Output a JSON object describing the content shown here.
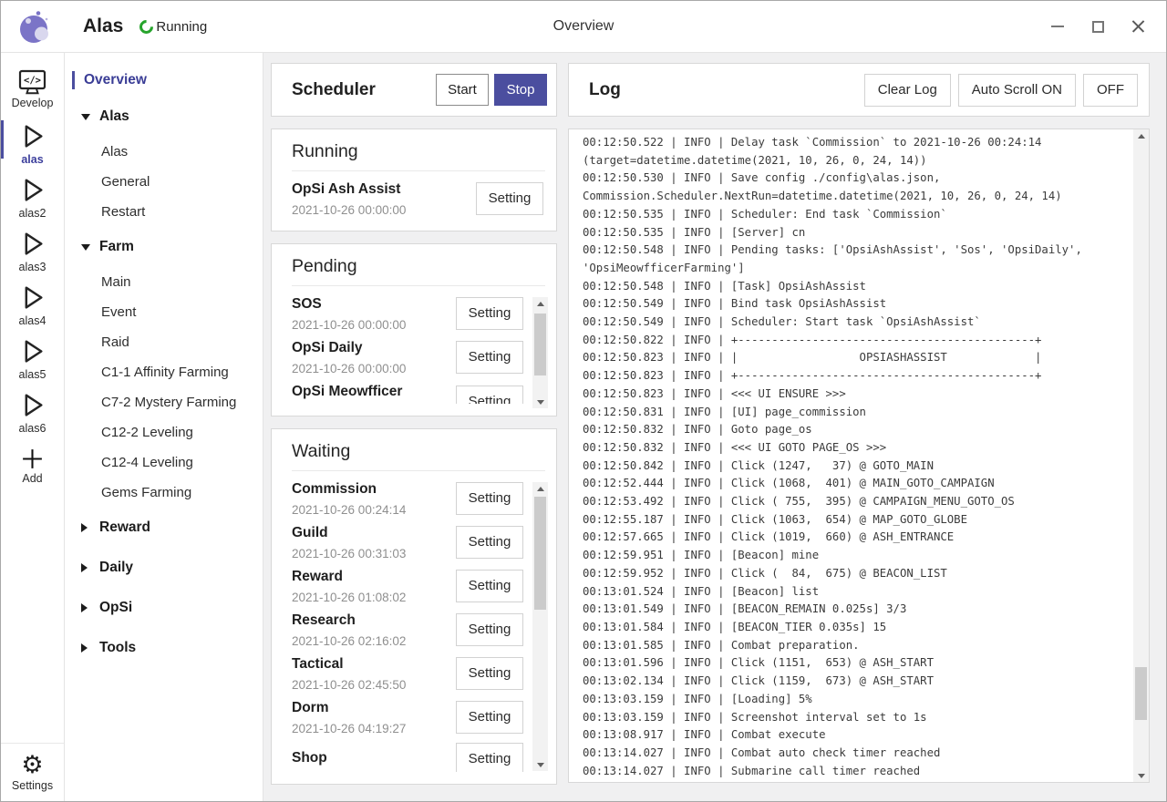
{
  "titlebar": {
    "app_title": "Alas",
    "status_label": "Running",
    "page_title": "Overview"
  },
  "rail": {
    "items": [
      {
        "label": "Develop",
        "icon": "develop-icon",
        "active": false
      },
      {
        "label": "alas",
        "icon": "play-icon",
        "active": true
      },
      {
        "label": "alas2",
        "icon": "play-icon",
        "active": false
      },
      {
        "label": "alas3",
        "icon": "play-icon",
        "active": false
      },
      {
        "label": "alas4",
        "icon": "play-icon",
        "active": false
      },
      {
        "label": "alas5",
        "icon": "play-icon",
        "active": false
      },
      {
        "label": "alas6",
        "icon": "play-icon",
        "active": false
      },
      {
        "label": "Add",
        "icon": "add-icon",
        "active": false
      }
    ],
    "settings": {
      "label": "Settings",
      "icon_glyph": "⚙"
    }
  },
  "sidebar": {
    "overview_label": "Overview",
    "groups": [
      {
        "label": "Alas",
        "expanded": true,
        "children": [
          "Alas",
          "General",
          "Restart"
        ]
      },
      {
        "label": "Farm",
        "expanded": true,
        "children": [
          "Main",
          "Event",
          "Raid",
          "C1-1 Affinity Farming",
          "C7-2 Mystery Farming",
          "C12-2 Leveling",
          "C12-4 Leveling",
          "Gems Farming"
        ]
      },
      {
        "label": "Reward",
        "expanded": false,
        "children": []
      },
      {
        "label": "Daily",
        "expanded": false,
        "children": []
      },
      {
        "label": "OpSi",
        "expanded": false,
        "children": []
      },
      {
        "label": "Tools",
        "expanded": false,
        "children": []
      }
    ]
  },
  "scheduler": {
    "title": "Scheduler",
    "start_label": "Start",
    "stop_label": "Stop",
    "setting_label": "Setting",
    "running": {
      "title": "Running",
      "tasks": [
        {
          "name": "OpSi Ash Assist",
          "time": "2021-10-26 00:00:00"
        }
      ]
    },
    "pending": {
      "title": "Pending",
      "tasks": [
        {
          "name": "SOS",
          "time": "2021-10-26 00:00:00"
        },
        {
          "name": "OpSi Daily",
          "time": "2021-10-26 00:00:00"
        },
        {
          "name": "OpSi Meowfficer Farming"
        }
      ]
    },
    "waiting": {
      "title": "Waiting",
      "tasks": [
        {
          "name": "Commission",
          "time": "2021-10-26 00:24:14"
        },
        {
          "name": "Guild",
          "time": "2021-10-26 00:31:03"
        },
        {
          "name": "Reward",
          "time": "2021-10-26 01:08:02"
        },
        {
          "name": "Research",
          "time": "2021-10-26 02:16:02"
        },
        {
          "name": "Tactical",
          "time": "2021-10-26 02:45:50"
        },
        {
          "name": "Dorm",
          "time": "2021-10-26 04:19:27"
        },
        {
          "name": "Shop"
        }
      ]
    }
  },
  "log": {
    "title": "Log",
    "clear_label": "Clear Log",
    "autoscroll_on_label": "Auto Scroll ON",
    "autoscroll_off_label": "OFF",
    "lines": [
      "00:12:50.522 | INFO | Delay task `Commission` to 2021-10-26 00:24:14",
      "(target=datetime.datetime(2021, 10, 26, 0, 24, 14))",
      "00:12:50.530 | INFO | Save config ./config\\alas.json,",
      "Commission.Scheduler.NextRun=datetime.datetime(2021, 10, 26, 0, 24, 14)",
      "00:12:50.535 | INFO | Scheduler: End task `Commission`",
      "00:12:50.535 | INFO | [Server] cn",
      "00:12:50.548 | INFO | Pending tasks: ['OpsiAshAssist', 'Sos', 'OpsiDaily',",
      "'OpsiMeowfficerFarming']",
      "00:12:50.548 | INFO | [Task] OpsiAshAssist",
      "00:12:50.549 | INFO | Bind task OpsiAshAssist",
      "00:12:50.549 | INFO | Scheduler: Start task `OpsiAshAssist`",
      "00:12:50.822 | INFO | +--------------------------------------------+",
      "00:12:50.823 | INFO | |                  OPSIASHASSIST             |",
      "00:12:50.823 | INFO | +--------------------------------------------+",
      "00:12:50.823 | INFO | <<< UI ENSURE >>>",
      "00:12:50.831 | INFO | [UI] page_commission",
      "00:12:50.832 | INFO | Goto page_os",
      "00:12:50.832 | INFO | <<< UI GOTO PAGE_OS >>>",
      "00:12:50.842 | INFO | Click (1247,   37) @ GOTO_MAIN",
      "00:12:52.444 | INFO | Click (1068,  401) @ MAIN_GOTO_CAMPAIGN",
      "00:12:53.492 | INFO | Click ( 755,  395) @ CAMPAIGN_MENU_GOTO_OS",
      "00:12:55.187 | INFO | Click (1063,  654) @ MAP_GOTO_GLOBE",
      "00:12:57.665 | INFO | Click (1019,  660) @ ASH_ENTRANCE",
      "00:12:59.951 | INFO | [Beacon] mine",
      "00:12:59.952 | INFO | Click (  84,  675) @ BEACON_LIST",
      "00:13:01.524 | INFO | [Beacon] list",
      "00:13:01.549 | INFO | [BEACON_REMAIN 0.025s] 3/3",
      "00:13:01.584 | INFO | [BEACON_TIER 0.035s] 15",
      "00:13:01.585 | INFO | Combat preparation.",
      "00:13:01.596 | INFO | Click (1151,  653) @ ASH_START",
      "00:13:02.134 | INFO | Click (1159,  673) @ ASH_START",
      "00:13:03.159 | INFO | [Loading] 5%",
      "00:13:03.159 | INFO | Screenshot interval set to 1s",
      "00:13:08.917 | INFO | Combat execute",
      "00:13:14.027 | INFO | Combat auto check timer reached",
      "00:13:14.027 | INFO | Submarine call timer reached"
    ]
  },
  "colors": {
    "accent": "#4b4e9f",
    "running_green": "#27a42c"
  }
}
